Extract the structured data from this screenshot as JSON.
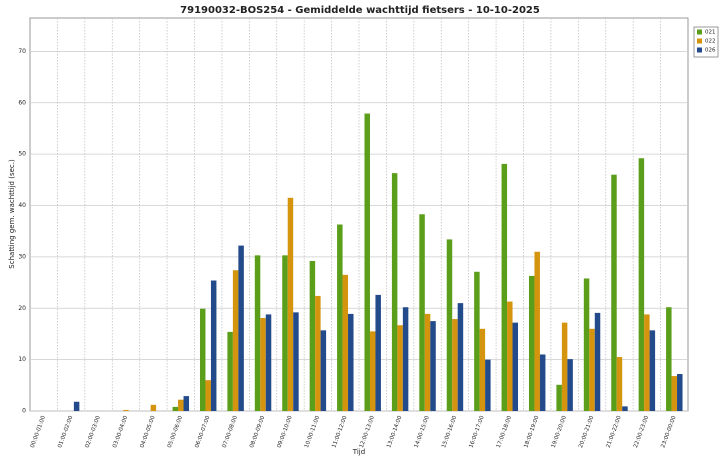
{
  "chart_data": {
    "type": "bar",
    "title": "79190032-BOS254 - Gemiddelde wachttijd fietsers - 10-10-2025",
    "x_label": "Tijd",
    "y_label": "Schatting gem. wachttijd (sec.)",
    "categories": [
      "00:00-01:00",
      "01:00-02:00",
      "02:00-03:00",
      "03:00-04:00",
      "04:00-05:00",
      "05:00-06:00",
      "06:00-07:00",
      "07:00-08:00",
      "08:00-09:00",
      "09:00-10:00",
      "10:00-11:00",
      "11:00-12:00",
      "12:00-13:00",
      "13:00-14:00",
      "14:00-15:00",
      "15:00-16:00",
      "16:00-17:00",
      "17:00-18:00",
      "18:00-19:00",
      "19:00-20:00",
      "20:00-21:00",
      "21:00-22:00",
      "22:00-23:00",
      "23:00-00:00"
    ],
    "series": [
      {
        "name": "021",
        "color": "#5a9e1a",
        "values": [
          0,
          0,
          0,
          0,
          0,
          0.8,
          19.9,
          15.4,
          30.3,
          30.3,
          29.2,
          36.3,
          57.9,
          46.3,
          38.3,
          33.4,
          27.1,
          48.1,
          26.3,
          5.1,
          25.8,
          46,
          49.2,
          20.2
        ]
      },
      {
        "name": "022",
        "color": "#d4940e",
        "values": [
          0,
          0,
          0,
          0.2,
          1.2,
          2.2,
          6,
          27.4,
          18.1,
          41.5,
          22.4,
          26.5,
          15.5,
          16.7,
          18.9,
          17.9,
          16,
          21.3,
          31,
          17.2,
          16,
          10.5,
          18.8,
          6.8
        ]
      },
      {
        "name": "026",
        "color": "#234a8a",
        "values": [
          0,
          1.8,
          0,
          0,
          0,
          2.9,
          25.4,
          32.2,
          18.8,
          19.2,
          15.7,
          18.9,
          22.6,
          20.2,
          17.5,
          21,
          10,
          17.2,
          11,
          10.1,
          19.1,
          0.9,
          15.7,
          7.2
        ]
      }
    ],
    "ylim": [
      0,
      76.5
    ],
    "yticks": [
      0,
      10,
      20,
      30,
      40,
      50,
      60,
      70
    ],
    "grid": true,
    "legend": "top-right"
  }
}
